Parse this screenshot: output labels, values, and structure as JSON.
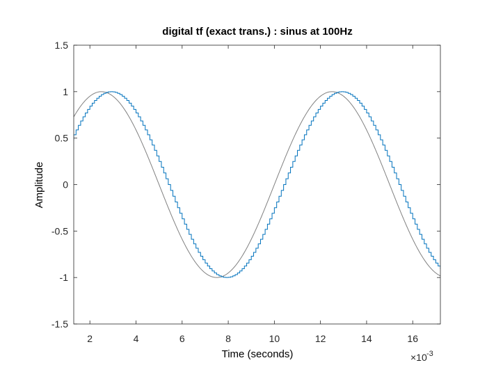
{
  "chart_data": {
    "type": "line",
    "title": "digital tf (exact trans.) : sinus at 100Hz",
    "xlabel": "Time (seconds)",
    "ylabel": "Amplitude",
    "x_exponent_label": "×10",
    "x_exponent_power": "-3",
    "xlim": [
      1.3,
      17.2
    ],
    "ylim": [
      -1.5,
      1.5
    ],
    "xticks": [
      2,
      4,
      6,
      8,
      10,
      12,
      14,
      16
    ],
    "xtick_labels": [
      "2",
      "4",
      "6",
      "8",
      "10",
      "12",
      "14",
      "16"
    ],
    "yticks": [
      -1.5,
      -1,
      -0.5,
      0,
      0.5,
      1,
      1.5
    ],
    "ytick_labels": [
      "-1.5",
      "-1",
      "-0.5",
      "0",
      "0.5",
      "1",
      "1.5"
    ],
    "grid": false,
    "series": [
      {
        "style": "line",
        "color": "#808080",
        "frequency_hz": 100,
        "amplitude": 1,
        "peak_x": [
          2.5,
          12.5
        ],
        "trough_x": [
          7.5
        ],
        "x": [
          1.3,
          1.6,
          1.9,
          2.2,
          2.5,
          2.8,
          3.1,
          3.4,
          3.7,
          4.0,
          4.3,
          4.6,
          4.9,
          5.2,
          5.5,
          5.8,
          6.1,
          6.4,
          6.7,
          7.0,
          7.3,
          7.6,
          7.9,
          8.2,
          8.5,
          8.8,
          9.1,
          9.4,
          9.7,
          10.0,
          10.3,
          10.6,
          10.9,
          11.2,
          11.5,
          11.8,
          12.1,
          12.4,
          12.7,
          13.0,
          13.3,
          13.6,
          13.9,
          14.2,
          14.5,
          14.8,
          15.1,
          15.4,
          15.7,
          16.0,
          16.3,
          16.6,
          16.9,
          17.2
        ],
        "y": [
          0.81,
          0.9,
          0.97,
          1.0,
          1.0,
          0.98,
          0.93,
          0.85,
          0.74,
          0.59,
          0.43,
          0.25,
          0.06,
          -0.13,
          -0.31,
          -0.48,
          -0.64,
          -0.77,
          -0.88,
          -0.95,
          -0.99,
          -1.0,
          -0.98,
          -0.93,
          -0.84,
          -0.73,
          -0.59,
          -0.43,
          -0.25,
          -0.06,
          0.13,
          0.31,
          0.48,
          0.64,
          0.77,
          0.88,
          0.95,
          0.99,
          1.0,
          0.98,
          0.93,
          0.84,
          0.73,
          0.59,
          0.43,
          0.25,
          0.06,
          -0.13,
          -0.31,
          -0.48,
          -0.64,
          -0.77,
          -0.88,
          -0.95
        ]
      },
      {
        "style": "step",
        "color": "#0072BD",
        "frequency_hz": 100,
        "amplitude": 1,
        "sample_period": 0.1,
        "peak_x": [
          2.9,
          12.9
        ],
        "trough_x": [
          7.9
        ],
        "x": [
          1.3,
          1.6,
          1.9,
          2.2,
          2.5,
          2.8,
          3.1,
          3.4,
          3.7,
          4.0,
          4.3,
          4.6,
          4.9,
          5.2,
          5.5,
          5.8,
          6.1,
          6.4,
          6.7,
          7.0,
          7.3,
          7.6,
          7.9,
          8.2,
          8.5,
          8.8,
          9.1,
          9.4,
          9.7,
          10.0,
          10.3,
          10.6,
          10.9,
          11.2,
          11.5,
          11.8,
          12.1,
          12.4,
          12.7,
          13.0,
          13.3,
          13.6,
          13.9,
          14.2,
          14.5,
          14.8,
          15.1,
          15.4,
          15.7,
          16.0,
          16.3,
          16.6,
          16.9,
          17.2
        ],
        "y": [
          0.59,
          0.73,
          0.84,
          0.93,
          0.98,
          1.0,
          0.99,
          0.95,
          0.88,
          0.77,
          0.64,
          0.48,
          0.31,
          0.13,
          -0.06,
          -0.25,
          -0.43,
          -0.59,
          -0.73,
          -0.84,
          -0.93,
          -0.98,
          -1.0,
          -0.99,
          -0.95,
          -0.88,
          -0.77,
          -0.64,
          -0.48,
          -0.31,
          -0.13,
          0.06,
          0.25,
          0.43,
          0.59,
          0.73,
          0.84,
          0.93,
          0.98,
          1.0,
          0.99,
          0.95,
          0.88,
          0.77,
          0.64,
          0.48,
          0.31,
          0.13,
          -0.06,
          -0.25,
          -0.43,
          -0.59,
          -0.73,
          -0.84
        ]
      }
    ]
  }
}
